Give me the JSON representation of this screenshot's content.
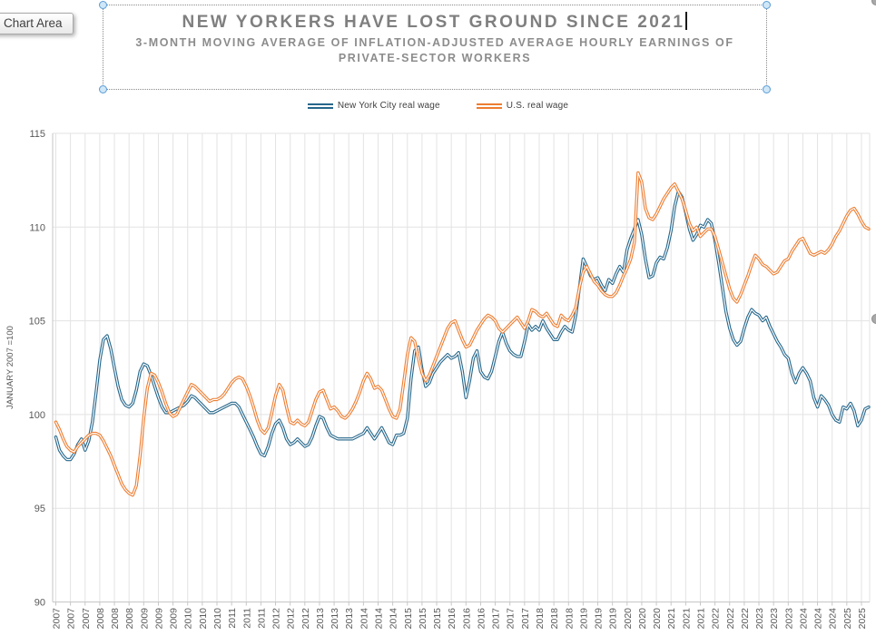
{
  "tooltip": {
    "label": "Chart Area"
  },
  "title_block": {
    "title": "NEW YORKERS HAVE LOST GROUND SINCE 2021",
    "subtitle_line1": "3-MONTH MOVING AVERAGE OF INFLATION-ADJUSTED AVERAGE HOURLY EARNINGS OF",
    "subtitle_line2": "PRIVATE-SECTOR WORKERS"
  },
  "chart_data": {
    "type": "line",
    "title": "NEW YORKERS HAVE LOST GROUND SINCE 2021",
    "subtitle": "3-MONTH MOVING AVERAGE OF INFLATION-ADJUSTED AVERAGE HOURLY EARNINGS OF PRIVATE-SECTOR WORKERS",
    "ylabel": "JANUARY 2007 =100",
    "ylim": [
      90,
      115
    ],
    "y_ticks": [
      115,
      110,
      105,
      100,
      95,
      90
    ],
    "grid": true,
    "legend_position": "top",
    "x_start": "2007-01",
    "x_end": "2025-07",
    "x_interval": "monthly",
    "x_tick_every_months": 4,
    "x_tick_labels": [
      "2007",
      "2007",
      "2007",
      "2008",
      "2008",
      "2008",
      "2009",
      "2009",
      "2009",
      "2010",
      "2010",
      "2010",
      "2011",
      "2011",
      "2011",
      "2012",
      "2012",
      "2012",
      "2013",
      "2013",
      "2013",
      "2014",
      "2014",
      "2014",
      "2015",
      "2015",
      "2015",
      "2016",
      "2016",
      "2016",
      "2017",
      "2017",
      "2017",
      "2018",
      "2018",
      "2018",
      "2019",
      "2019",
      "2019",
      "2020",
      "2020",
      "2020",
      "2021",
      "2021",
      "2021",
      "2022",
      "2022",
      "2022",
      "2023",
      "2023",
      "2023",
      "2024",
      "2024",
      "2024",
      "2025",
      "2025"
    ],
    "series": [
      {
        "name": "New York City real wage",
        "color": "#26678B",
        "values": [
          98.8,
          98.1,
          97.8,
          97.6,
          97.6,
          97.9,
          98.4,
          98.7,
          98.1,
          98.6,
          99.6,
          101.2,
          102.9,
          104.0,
          104.2,
          103.5,
          102.5,
          101.5,
          100.8,
          100.5,
          100.4,
          100.6,
          101.3,
          102.3,
          102.7,
          102.6,
          102.1,
          101.5,
          100.9,
          100.4,
          100.1,
          100.1,
          100.2,
          100.3,
          100.4,
          100.5,
          100.7,
          101.0,
          100.9,
          100.7,
          100.5,
          100.3,
          100.1,
          100.1,
          100.2,
          100.3,
          100.4,
          100.5,
          100.6,
          100.6,
          100.4,
          100.0,
          99.6,
          99.2,
          98.8,
          98.3,
          97.9,
          97.8,
          98.3,
          99.0,
          99.5,
          99.7,
          99.3,
          98.7,
          98.4,
          98.5,
          98.7,
          98.5,
          98.3,
          98.4,
          98.8,
          99.4,
          99.9,
          99.8,
          99.3,
          98.9,
          98.8,
          98.7,
          98.7,
          98.7,
          98.7,
          98.7,
          98.8,
          98.9,
          99.0,
          99.3,
          99.0,
          98.7,
          99.0,
          99.3,
          98.9,
          98.5,
          98.4,
          98.9,
          98.9,
          99.0,
          99.8,
          101.9,
          103.4,
          103.6,
          102.4,
          101.5,
          101.7,
          102.2,
          102.5,
          102.8,
          103.0,
          103.2,
          103.0,
          103.1,
          103.3,
          102.3,
          100.9,
          101.8,
          103.0,
          103.4,
          102.3,
          102.0,
          101.9,
          102.3,
          103.1,
          103.9,
          104.4,
          103.8,
          103.4,
          103.2,
          103.1,
          103.1,
          103.9,
          104.8,
          104.5,
          104.7,
          104.5,
          105.0,
          104.6,
          104.3,
          104.0,
          104.0,
          104.4,
          104.7,
          104.5,
          104.4,
          105.3,
          106.8,
          108.3,
          107.9,
          107.4,
          107.2,
          107.3,
          106.9,
          106.6,
          107.2,
          107.0,
          107.5,
          107.9,
          107.6,
          108.8,
          109.4,
          109.9,
          110.4,
          109.6,
          108.3,
          107.3,
          107.4,
          108.1,
          108.4,
          108.3,
          108.9,
          109.8,
          111.1,
          111.9,
          111.6,
          110.8,
          109.9,
          109.3,
          109.6,
          110.1,
          110.0,
          110.4,
          110.2,
          109.3,
          108.1,
          106.8,
          105.5,
          104.6,
          104.0,
          103.7,
          103.9,
          104.6,
          105.2,
          105.6,
          105.4,
          105.3,
          105.0,
          105.2,
          104.7,
          104.3,
          103.9,
          103.6,
          103.2,
          103.0,
          102.2,
          101.7,
          102.2,
          102.5,
          102.2,
          101.8,
          100.9,
          100.4,
          101.0,
          100.8,
          100.5,
          100.0,
          99.7,
          99.6,
          100.4,
          100.3,
          100.6,
          100.2,
          99.4,
          99.7,
          100.3,
          100.4
        ]
      },
      {
        "name": "U.S. real wage",
        "color": "#ED7D31",
        "values": [
          99.6,
          99.2,
          98.7,
          98.3,
          98.1,
          98.0,
          98.3,
          98.5,
          98.7,
          98.9,
          99.0,
          99.0,
          98.9,
          98.6,
          98.2,
          97.8,
          97.3,
          96.8,
          96.3,
          96.0,
          95.8,
          95.7,
          96.2,
          97.8,
          99.8,
          101.4,
          102.2,
          102.1,
          101.7,
          101.2,
          100.6,
          100.1,
          99.9,
          100.0,
          100.4,
          100.8,
          101.2,
          101.6,
          101.5,
          101.3,
          101.1,
          100.9,
          100.7,
          100.8,
          100.8,
          100.9,
          101.1,
          101.4,
          101.7,
          101.9,
          102.0,
          101.9,
          101.5,
          101.0,
          100.4,
          99.7,
          99.2,
          99.0,
          99.3,
          100.1,
          101.0,
          101.6,
          101.3,
          100.4,
          99.6,
          99.5,
          99.7,
          99.5,
          99.4,
          99.6,
          100.2,
          100.8,
          101.2,
          101.3,
          100.8,
          100.3,
          100.4,
          100.2,
          99.9,
          99.8,
          100.0,
          100.3,
          100.7,
          101.2,
          101.8,
          102.2,
          101.9,
          101.4,
          101.5,
          101.3,
          100.8,
          100.3,
          99.9,
          99.8,
          100.3,
          101.7,
          103.2,
          104.1,
          103.9,
          103.0,
          102.2,
          101.8,
          102.1,
          102.6,
          103.1,
          103.6,
          104.1,
          104.6,
          104.9,
          105.0,
          104.5,
          104.0,
          103.6,
          103.7,
          104.1,
          104.5,
          104.8,
          105.1,
          105.3,
          105.2,
          105.0,
          104.6,
          104.4,
          104.6,
          104.8,
          105.0,
          105.2,
          104.9,
          104.6,
          105.0,
          105.6,
          105.5,
          105.3,
          105.2,
          105.4,
          105.1,
          104.8,
          104.7,
          105.3,
          105.1,
          105.0,
          105.3,
          105.7,
          106.8,
          107.6,
          107.9,
          107.5,
          107.1,
          106.9,
          106.6,
          106.4,
          106.3,
          106.3,
          106.5,
          106.9,
          107.4,
          107.8,
          108.3,
          109.2,
          112.9,
          112.4,
          111.0,
          110.5,
          110.4,
          110.7,
          111.1,
          111.5,
          111.8,
          112.1,
          112.3,
          111.9,
          111.5,
          110.9,
          110.2,
          109.8,
          110.0,
          109.5,
          109.7,
          109.9,
          109.9,
          109.5,
          108.8,
          108.1,
          107.4,
          106.7,
          106.2,
          106.0,
          106.4,
          106.9,
          107.4,
          108.0,
          108.5,
          108.3,
          108.0,
          107.9,
          107.7,
          107.5,
          107.6,
          107.9,
          108.2,
          108.3,
          108.7,
          109.0,
          109.3,
          109.4,
          109.0,
          108.6,
          108.5,
          108.6,
          108.7,
          108.6,
          108.8,
          109.1,
          109.5,
          109.8,
          110.2,
          110.6,
          110.9,
          111.0,
          110.7,
          110.3,
          110.0,
          109.9
        ]
      }
    ]
  },
  "colors": {
    "title_gray": "#7f7f7f",
    "axis_label_gray": "#595959",
    "gridline": "#e3e3e3",
    "axis_line": "#c6c6c6"
  }
}
